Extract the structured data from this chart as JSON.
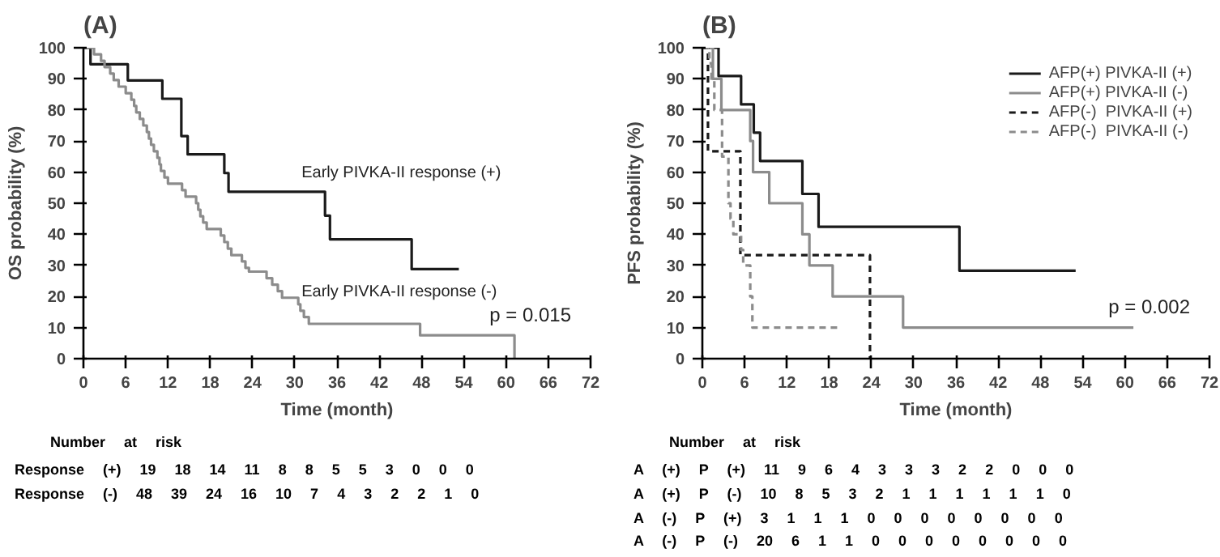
{
  "chart_data": [
    {
      "type": "step",
      "title": "(A)",
      "xlabel": "Time (month)",
      "ylabel": "OS probability (%)",
      "xlim": [
        0,
        72
      ],
      "ylim": [
        0,
        100
      ],
      "xticks": [
        0,
        6,
        12,
        18,
        24,
        30,
        36,
        42,
        48,
        54,
        60,
        66,
        72
      ],
      "yticks": [
        0,
        10,
        20,
        30,
        40,
        50,
        60,
        70,
        80,
        90,
        100
      ],
      "grid": false,
      "legend": false,
      "annotations": [
        "p = 0.015",
        "Number at risk",
        "Response (+) 19 18 14 11 8 8 5 5 3 0 0 0",
        "Response (-) 48 39 24 16 10 7 4 3 2 2 1 0"
      ],
      "series": [
        {
          "name": "Early PIVKA-II response (+)",
          "color": "#1a1a1a",
          "line_style": "solid",
          "x": [
            0,
            1,
            6.3,
            11.2,
            13.9,
            14.8,
            20,
            20.6,
            34.3,
            35,
            46.6,
            53.3
          ],
          "values": [
            100,
            94.7,
            89.5,
            83.6,
            71.6,
            65.7,
            59.7,
            53.7,
            46,
            38.4,
            28.8,
            28.8
          ]
        },
        {
          "name": "Early PIVKA-II response (-)",
          "color": "#8c8c8c",
          "line_style": "solid",
          "x": [
            0,
            1.5,
            2.5,
            3,
            3.8,
            4.3,
            5,
            6,
            6.8,
            7.2,
            7.5,
            8,
            8.5,
            9,
            9.3,
            9.6,
            10,
            10.5,
            10.8,
            11,
            11.5,
            12,
            14,
            14.5,
            16,
            16.3,
            16.6,
            17,
            17.5,
            19.5,
            20,
            20.5,
            21,
            22.5,
            23,
            23.5,
            26,
            26.8,
            27.6,
            28.2,
            30.5,
            30.8,
            31.3,
            32,
            47.8,
            61.2
          ],
          "values": [
            100,
            97.9,
            95.8,
            93.8,
            91.7,
            89.6,
            87.5,
            85.4,
            83.3,
            81.3,
            79.2,
            77.1,
            75,
            72.9,
            70.8,
            68.8,
            66.7,
            64.6,
            62.5,
            60.4,
            58.3,
            56.3,
            54.2,
            52.1,
            50,
            47.9,
            45.8,
            43.8,
            41.7,
            39.6,
            37.5,
            35.4,
            33.3,
            31.3,
            29.2,
            28,
            25.9,
            23.8,
            21.7,
            19.6,
            17.5,
            15.4,
            13.4,
            11.2,
            7.5,
            0
          ]
        }
      ]
    },
    {
      "type": "step",
      "title": "(B)",
      "xlabel": "Time (month)",
      "ylabel": "PFS probability (%)",
      "xlim": [
        0,
        72
      ],
      "ylim": [
        0,
        100
      ],
      "xticks": [
        0,
        6,
        12,
        18,
        24,
        30,
        36,
        42,
        48,
        54,
        60,
        66,
        72
      ],
      "yticks": [
        0,
        10,
        20,
        30,
        40,
        50,
        60,
        70,
        80,
        90,
        100
      ],
      "grid": false,
      "legend": "top right",
      "annotations": [
        "p = 0.002",
        "Number at risk",
        "A (+) P (+) 11 9 6 4 3 3 3 2 2 0 0 0",
        "A (+) P (-) 10 8 5 3 2 1 1 1 1 1 1 0",
        "A (-) P (+) 3 1 1 1 0 0 0 0 0 0 0 0",
        "A (-) P (-) 20 6 1 1 0 0 0 0 0 0 0 0"
      ],
      "series": [
        {
          "name": "AFP(+) PIVKA-II (+)",
          "color": "#1a1a1a",
          "line_style": "solid",
          "x": [
            0,
            2.3,
            5.5,
            7.3,
            8.2,
            14.2,
            16.5,
            36.5,
            53
          ],
          "values": [
            100,
            90.9,
            81.8,
            72.7,
            63.6,
            53,
            42.4,
            28.3,
            28.3
          ]
        },
        {
          "name": "AFP(+) PIVKA-II (-)",
          "color": "#8c8c8c",
          "line_style": "solid",
          "x": [
            0,
            1.5,
            2.7,
            6.8,
            7.2,
            9.5,
            14.2,
            15.2,
            18.5,
            28.5,
            61.2
          ],
          "values": [
            100,
            90,
            80,
            70,
            60,
            50,
            40,
            30,
            20,
            10,
            10
          ]
        },
        {
          "name": "AFP(-)  PIVKA-II (+)",
          "color": "#1a1a1a",
          "line_style": "dashed",
          "x": [
            0,
            0.8,
            5.4,
            23.8
          ],
          "values": [
            100,
            66.7,
            33.3,
            0
          ]
        },
        {
          "name": "AFP(-)  PIVKA-II (-)",
          "color": "#8c8c8c",
          "line_style": "dashed",
          "x": [
            0,
            1,
            1.3,
            1.7,
            2.8,
            3.7,
            4,
            4.4,
            5.5,
            5.8,
            6.8,
            7.1,
            19.5
          ],
          "values": [
            100,
            95,
            90,
            80,
            65,
            50,
            45,
            40,
            35,
            30,
            20,
            10,
            10
          ]
        }
      ]
    }
  ]
}
